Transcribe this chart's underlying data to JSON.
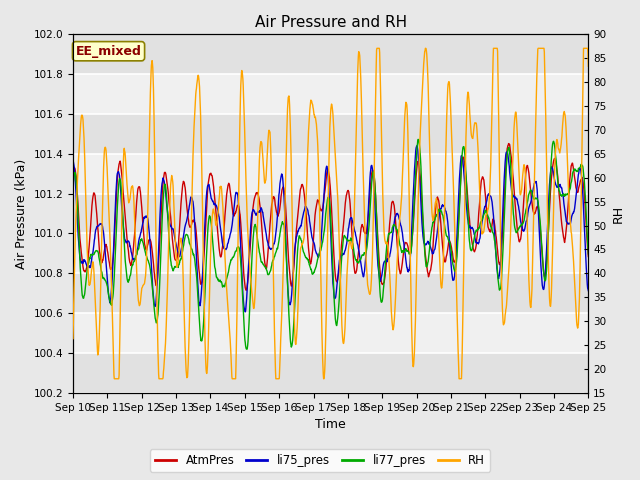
{
  "title": "Air Pressure and RH",
  "xlabel": "Time",
  "ylabel_left": "Air Pressure (kPa)",
  "ylabel_right": "RH",
  "ylim_left": [
    100.2,
    102.0
  ],
  "ylim_right": [
    15,
    90
  ],
  "yticks_left": [
    100.2,
    100.4,
    100.6,
    100.8,
    101.0,
    101.2,
    101.4,
    101.6,
    101.8,
    102.0
  ],
  "yticks_right": [
    15,
    20,
    25,
    30,
    35,
    40,
    45,
    50,
    55,
    60,
    65,
    70,
    75,
    80,
    85,
    90
  ],
  "xtick_labels": [
    "Sep 10",
    "Sep 11",
    "Sep 12",
    "Sep 13",
    "Sep 14",
    "Sep 15",
    "Sep 16",
    "Sep 17",
    "Sep 18",
    "Sep 19",
    "Sep 20",
    "Sep 21",
    "Sep 22",
    "Sep 23",
    "Sep 24",
    "Sep 25"
  ],
  "annotation_text": "EE_mixed",
  "annotation_color": "#8B0000",
  "annotation_bg": "#FFFFCC",
  "annotation_border": "#8B8000",
  "colors": {
    "AtmPres": "#CC0000",
    "li75_pres": "#0000CC",
    "li77_pres": "#00AA00",
    "RH": "#FFA500"
  },
  "bg_color": "#E8E8E8",
  "plot_bg": "#F0F0F0",
  "band_color": "#DCDCDC",
  "grid_color": "#FFFFFF",
  "title_fontsize": 11,
  "label_fontsize": 9,
  "tick_fontsize": 7.5,
  "linewidth": 1.0
}
